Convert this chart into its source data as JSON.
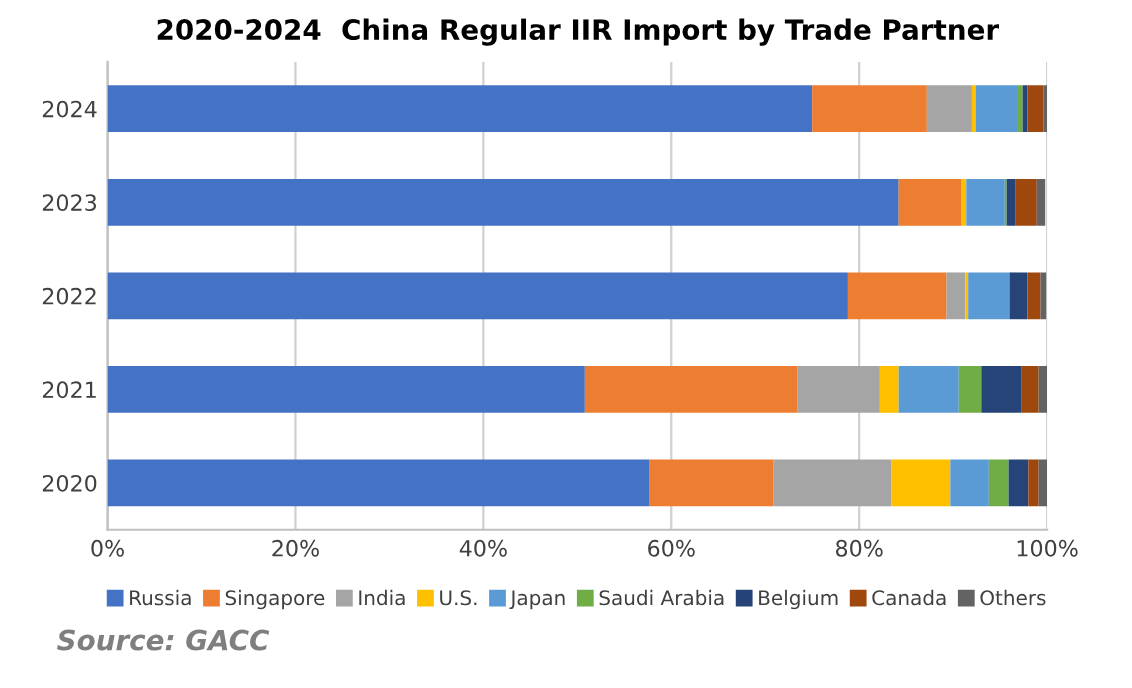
{
  "chart_data": {
    "type": "bar",
    "orientation": "horizontal",
    "stacked": true,
    "title": "2020-2024  China Regular IIR Import by Trade Partner",
    "categories": [
      "2024",
      "2023",
      "2022",
      "2021",
      "2020"
    ],
    "series": [
      {
        "name": "Russia",
        "color": "#4472c4",
        "values": [
          75.0,
          84.2,
          78.8,
          50.8,
          57.7
        ]
      },
      {
        "name": "Singapore",
        "color": "#ed7d31",
        "values": [
          12.2,
          6.7,
          10.5,
          22.6,
          13.2
        ]
      },
      {
        "name": "India",
        "color": "#a5a5a5",
        "values": [
          4.8,
          null,
          2.0,
          8.8,
          12.5
        ]
      },
      {
        "name": "U.S.",
        "color": "#ffc000",
        "values": [
          0.4,
          0.5,
          0.3,
          2.0,
          6.3
        ]
      },
      {
        "name": "Japan",
        "color": "#5b9bd5",
        "values": [
          4.4,
          4.1,
          4.4,
          6.4,
          4.1
        ]
      },
      {
        "name": "Saudi Arabia",
        "color": "#70ad47",
        "values": [
          0.6,
          0.2,
          null,
          2.4,
          2.1
        ]
      },
      {
        "name": "Belgium",
        "color": "#264478",
        "values": [
          0.5,
          0.9,
          1.9,
          4.3,
          2.1
        ]
      },
      {
        "name": "Canada",
        "color": "#9e480e",
        "values": [
          1.7,
          2.3,
          1.4,
          1.8,
          1.1
        ]
      },
      {
        "name": "Others",
        "color": "#636363",
        "values": [
          0.4,
          0.9,
          0.6,
          0.9,
          0.9
        ]
      }
    ],
    "xlim": [
      0,
      100
    ],
    "xticks": [
      {
        "value": 0,
        "label": "0%"
      },
      {
        "value": 20,
        "label": "20%"
      },
      {
        "value": 40,
        "label": "40%"
      },
      {
        "value": 60,
        "label": "60%"
      },
      {
        "value": 80,
        "label": "80%"
      },
      {
        "value": 100,
        "label": "100%"
      }
    ],
    "grid": "x",
    "legend": "bottom",
    "annotations": [
      "Source: GACC"
    ]
  }
}
